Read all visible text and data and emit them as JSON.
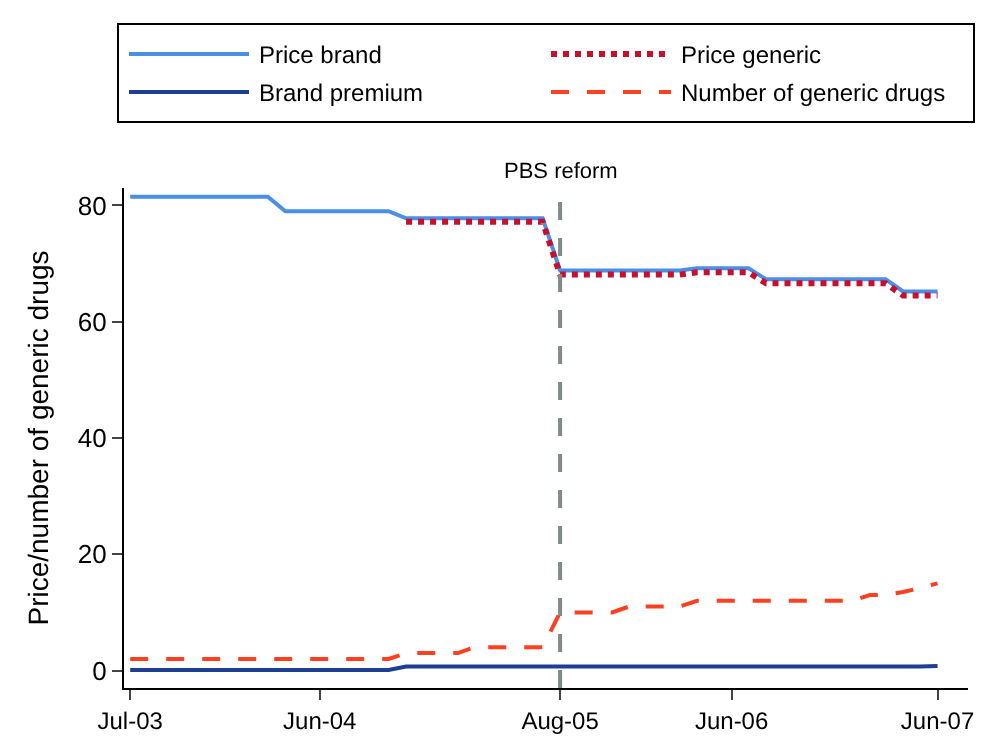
{
  "chart_data": {
    "type": "line",
    "ylabel": "Price/number of generic drugs",
    "x": [
      "2003-07",
      "2003-08",
      "2003-09",
      "2003-10",
      "2003-11",
      "2003-12",
      "2004-01",
      "2004-02",
      "2004-03",
      "2004-04",
      "2004-05",
      "2004-06",
      "2004-07",
      "2004-08",
      "2004-09",
      "2004-10",
      "2004-11",
      "2004-12",
      "2005-01",
      "2005-02",
      "2005-03",
      "2005-04",
      "2005-05",
      "2005-06",
      "2005-07",
      "2005-08",
      "2005-09",
      "2005-10",
      "2005-11",
      "2005-12",
      "2006-01",
      "2006-02",
      "2006-03",
      "2006-04",
      "2006-05",
      "2006-06",
      "2006-07",
      "2006-08",
      "2006-09",
      "2006-10",
      "2006-11",
      "2006-12",
      "2007-01",
      "2007-02",
      "2007-03",
      "2007-04",
      "2007-05",
      "2007-06"
    ],
    "series": [
      {
        "name": "Price brand",
        "color": "#4a8fe6",
        "line_style": "solid",
        "values": [
          81.5,
          81.5,
          81.5,
          81.5,
          81.5,
          81.5,
          81.5,
          81.5,
          81.5,
          79,
          79,
          79,
          79,
          79,
          79,
          79,
          77.8,
          77.8,
          77.8,
          77.8,
          77.8,
          77.8,
          77.8,
          77.8,
          77.8,
          68.8,
          68.8,
          68.8,
          68.8,
          68.8,
          68.8,
          68.8,
          68.8,
          69.2,
          69.2,
          69.2,
          69.2,
          67.3,
          67.3,
          67.3,
          67.3,
          67.3,
          67.3,
          67.3,
          67.3,
          65.2,
          65.2,
          65.2
        ]
      },
      {
        "name": "Price generic",
        "color": "#c8102e",
        "line_style": "dotted",
        "values": [
          null,
          null,
          null,
          null,
          null,
          null,
          null,
          null,
          null,
          null,
          null,
          null,
          null,
          null,
          null,
          null,
          77.2,
          77.2,
          77.2,
          77.2,
          77.2,
          77.2,
          77.2,
          77.2,
          77.2,
          68.1,
          68.1,
          68.1,
          68.1,
          68.1,
          68.1,
          68.1,
          68.1,
          68.5,
          68.5,
          68.5,
          68.5,
          66.6,
          66.6,
          66.6,
          66.6,
          66.6,
          66.6,
          66.6,
          66.6,
          64.5,
          64.5,
          64.5
        ]
      },
      {
        "name": "Brand premium",
        "color": "#1c3f94",
        "line_style": "solid",
        "values": [
          0.1,
          0.1,
          0.1,
          0.1,
          0.1,
          0.1,
          0.1,
          0.1,
          0.1,
          0.1,
          0.1,
          0.1,
          0.1,
          0.1,
          0.1,
          0.1,
          0.7,
          0.7,
          0.7,
          0.7,
          0.7,
          0.7,
          0.7,
          0.7,
          0.7,
          0.7,
          0.7,
          0.7,
          0.7,
          0.7,
          0.7,
          0.7,
          0.7,
          0.7,
          0.7,
          0.7,
          0.7,
          0.7,
          0.7,
          0.7,
          0.7,
          0.7,
          0.7,
          0.7,
          0.7,
          0.7,
          0.7,
          0.8
        ]
      },
      {
        "name": "Number of generic drugs",
        "color": "#ff4020",
        "line_style": "dashed",
        "values": [
          2,
          2,
          2,
          2,
          2,
          2,
          2,
          2,
          2,
          2,
          2,
          2,
          2,
          2,
          2,
          2,
          3,
          3,
          3,
          3,
          4,
          4,
          4,
          4,
          4,
          10,
          10,
          10,
          10,
          11,
          11,
          11,
          11,
          12,
          12,
          12,
          12,
          12,
          12,
          12,
          12,
          12,
          12,
          13,
          13,
          13.5,
          14.2,
          15
        ]
      }
    ],
    "xlim": [
      "2003-06-20",
      "2007-07-25"
    ],
    "xticks": [
      {
        "value": "2003-07",
        "label": "Jul-03"
      },
      {
        "value": "2004-06",
        "label": "Jun-04"
      },
      {
        "value": "2005-08",
        "label": "Aug-05"
      },
      {
        "value": "2006-06",
        "label": "Jun-06"
      },
      {
        "value": "2007-06",
        "label": "Jun-07"
      }
    ],
    "ylim": [
      -3,
      83
    ],
    "yticks": [
      0,
      20,
      40,
      60,
      80
    ],
    "ref_lines": [
      {
        "axis": "x",
        "value": "2005-08",
        "label": "PBS reform",
        "color": "#808a8a",
        "line_style": "dashed"
      }
    ],
    "grid": false,
    "legend": "top",
    "marker": "none"
  }
}
